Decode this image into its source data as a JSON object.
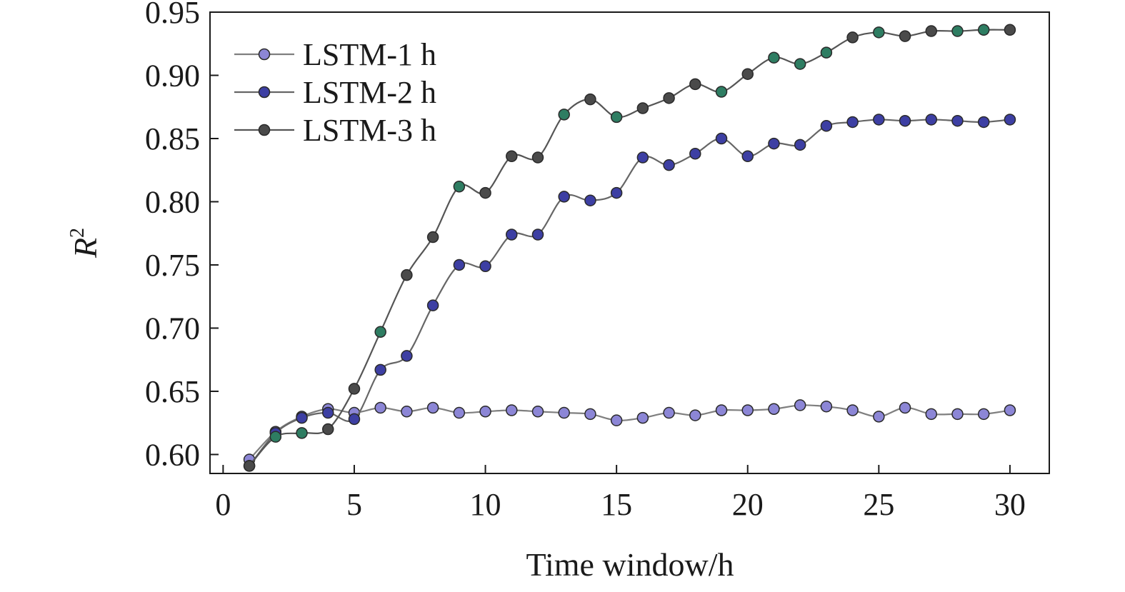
{
  "chart_data": {
    "type": "line",
    "xlabel": "Time window/h",
    "ylabel": "R",
    "ylabel_superscript": "2",
    "xlim": [
      -0.5,
      31.5
    ],
    "ylim": [
      0.585,
      0.95
    ],
    "xticks": [
      0,
      5,
      10,
      15,
      20,
      25,
      30
    ],
    "yticks": [
      0.6,
      0.65,
      0.7,
      0.75,
      0.8,
      0.85,
      0.9,
      0.95
    ],
    "xtick_labels": [
      "0",
      "5",
      "10",
      "15",
      "20",
      "25",
      "30"
    ],
    "ytick_labels": [
      "0.60",
      "0.65",
      "0.70",
      "0.75",
      "0.80",
      "0.85",
      "0.90",
      "0.95"
    ],
    "grid": false,
    "legend_position": "top-left",
    "x": [
      1,
      2,
      3,
      4,
      5,
      6,
      7,
      8,
      9,
      10,
      11,
      12,
      13,
      14,
      15,
      16,
      17,
      18,
      19,
      20,
      21,
      22,
      23,
      24,
      25,
      26,
      27,
      28,
      29,
      30
    ],
    "series": [
      {
        "name": "LSTM-1 h",
        "line_color": "#7f7f7f",
        "marker_color": "#8c86d6",
        "values": [
          0.596,
          0.618,
          0.63,
          0.636,
          0.633,
          0.637,
          0.634,
          0.637,
          0.633,
          0.634,
          0.635,
          0.634,
          0.633,
          0.632,
          0.627,
          0.629,
          0.633,
          0.631,
          0.635,
          0.635,
          0.636,
          0.639,
          0.638,
          0.635,
          0.63,
          0.637,
          0.632,
          0.632,
          0.632,
          0.635
        ]
      },
      {
        "name": "LSTM-2 h",
        "line_color": "#666666",
        "marker_color": "#3d3fa3",
        "values": [
          0.591,
          0.617,
          0.629,
          0.633,
          0.628,
          0.667,
          0.678,
          0.718,
          0.75,
          0.749,
          0.774,
          0.774,
          0.804,
          0.801,
          0.807,
          0.835,
          0.829,
          0.838,
          0.85,
          0.836,
          0.846,
          0.845,
          0.86,
          0.863,
          0.865,
          0.864,
          0.865,
          0.864,
          0.863,
          0.865
        ]
      },
      {
        "name": "LSTM-3 h",
        "line_color": "#555555",
        "marker_color": "#4a4a4a",
        "marker_colors": [
          "#4a4a4a",
          "#2e7d62",
          "#2e7d62",
          "#4a4a4a",
          "#4a4a4a",
          "#2e7d62",
          "#4a4a4a",
          "#4a4a4a",
          "#2e7d62",
          "#4a4a4a",
          "#4a4a4a",
          "#4a4a4a",
          "#2e7d62",
          "#4a4a4a",
          "#2e7d62",
          "#4a4a4a",
          "#4a4a4a",
          "#4a4a4a",
          "#2e7d62",
          "#4a4a4a",
          "#2e7d62",
          "#2e7d62",
          "#2e7d62",
          "#4a4a4a",
          "#2e7d62",
          "#4a4a4a",
          "#4a4a4a",
          "#2e7d62",
          "#2e7d62",
          "#4a4a4a"
        ],
        "values": [
          0.591,
          0.614,
          0.617,
          0.62,
          0.652,
          0.697,
          0.742,
          0.772,
          0.812,
          0.807,
          0.836,
          0.835,
          0.869,
          0.881,
          0.867,
          0.874,
          0.882,
          0.893,
          0.887,
          0.901,
          0.914,
          0.909,
          0.918,
          0.93,
          0.934,
          0.931,
          0.935,
          0.935,
          0.936,
          0.936
        ]
      }
    ]
  }
}
